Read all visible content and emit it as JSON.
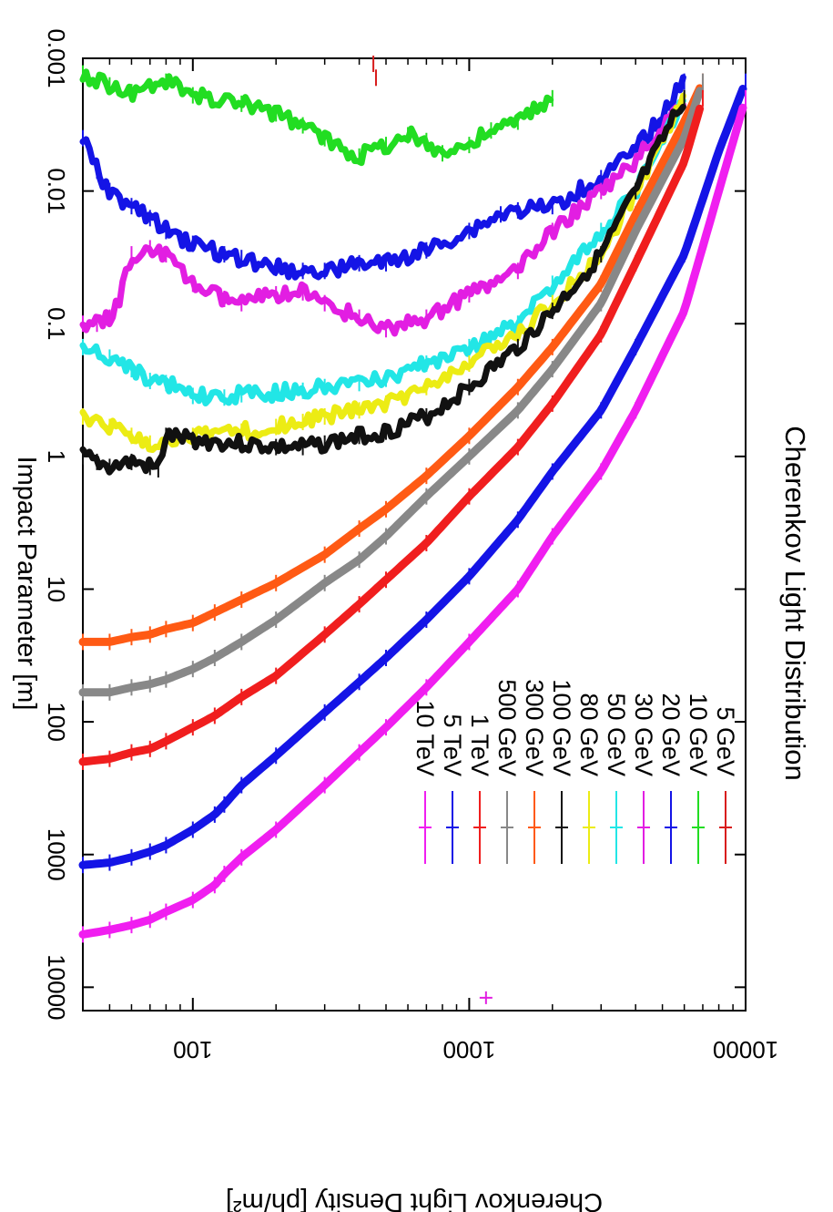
{
  "chart_data": {
    "type": "line",
    "title": "Cherenkov Light Distribution",
    "xlabel": "Impact Parameter [m]",
    "ylabel": "Cherenkov Light Density [ph/m²]",
    "xscale": "log",
    "yscale": "log",
    "xlim": [
      40,
      10000
    ],
    "ylim": [
      0.001,
      15000
    ],
    "xticks": [
      100,
      1000,
      10000
    ],
    "xtick_labels": [
      "100",
      "1000",
      "10000"
    ],
    "yticks": [
      0.001,
      0.01,
      0.1,
      1,
      10,
      100,
      1000,
      10000
    ],
    "ytick_labels": [
      "0.001",
      "0.01",
      "0.1",
      "1",
      "10",
      "100",
      "1000",
      "10000"
    ],
    "grid": false,
    "legend_position": "top-right",
    "series": [
      {
        "name": "5 GeV",
        "color": "#d81b1b",
        "x": [
          450,
          460
        ],
        "y": [
          0.0011,
          0.0014
        ]
      },
      {
        "name": "10 GeV",
        "color": "#22dd22",
        "x": [
          40,
          50,
          60,
          80,
          100,
          150,
          200,
          250,
          300,
          400,
          500,
          600,
          700,
          800,
          1000,
          1200,
          1500,
          2000
        ],
        "y": [
          0.0013,
          0.0016,
          0.0018,
          0.0015,
          0.0019,
          0.0022,
          0.0026,
          0.0032,
          0.004,
          0.0055,
          0.0045,
          0.0038,
          0.0042,
          0.0052,
          0.0045,
          0.0035,
          0.003,
          0.002
        ]
      },
      {
        "name": "20 GeV",
        "color": "#1414e6",
        "x": [
          40,
          45,
          50,
          60,
          70,
          80,
          100,
          130,
          150,
          200,
          250,
          300,
          400,
          500,
          700,
          1000,
          1300,
          1500,
          2000,
          3000,
          4000,
          6000
        ],
        "y": [
          0.004,
          0.007,
          0.01,
          0.013,
          0.016,
          0.02,
          0.025,
          0.03,
          0.032,
          0.038,
          0.04,
          0.04,
          0.035,
          0.035,
          0.028,
          0.02,
          0.015,
          0.014,
          0.013,
          0.008,
          0.005,
          0.0015
        ]
      },
      {
        "name": "30 GeV",
        "color": "#e21ee2",
        "x": [
          40,
          45,
          50,
          55,
          60,
          70,
          80,
          100,
          130,
          150,
          200,
          250,
          300,
          400,
          500,
          700,
          1000,
          1500,
          2000,
          3000,
          4000,
          6000
        ],
        "y": [
          0.1,
          0.1,
          0.09,
          0.06,
          0.03,
          0.027,
          0.03,
          0.05,
          0.065,
          0.07,
          0.06,
          0.058,
          0.07,
          0.09,
          0.11,
          0.09,
          0.06,
          0.04,
          0.02,
          0.01,
          0.006,
          0.002
        ]
      },
      {
        "name": "50 GeV",
        "color": "#22e6e6",
        "x": [
          40,
          50,
          60,
          70,
          80,
          100,
          130,
          150,
          200,
          250,
          300,
          400,
          500,
          700,
          1000,
          1500,
          2000,
          3000,
          4000,
          6000
        ],
        "y": [
          0.15,
          0.18,
          0.22,
          0.27,
          0.28,
          0.35,
          0.36,
          0.34,
          0.33,
          0.32,
          0.3,
          0.28,
          0.26,
          0.2,
          0.15,
          0.1,
          0.05,
          0.02,
          0.01,
          0.002
        ]
      },
      {
        "name": "80 GeV",
        "color": "#ecec14",
        "x": [
          40,
          50,
          60,
          70,
          80,
          100,
          150,
          200,
          250,
          300,
          400,
          500,
          700,
          1000,
          1500,
          2000,
          3000,
          4000,
          6000
        ],
        "y": [
          0.5,
          0.6,
          0.7,
          0.8,
          0.75,
          0.7,
          0.65,
          0.6,
          0.55,
          0.5,
          0.45,
          0.4,
          0.3,
          0.2,
          0.12,
          0.07,
          0.03,
          0.01,
          0.002
        ]
      },
      {
        "name": "100 GeV",
        "color": "#111111",
        "x": [
          40,
          45,
          50,
          60,
          70,
          75,
          80,
          100,
          150,
          200,
          250,
          300,
          400,
          500,
          700,
          1000,
          1500,
          2000,
          3000,
          4000,
          6000
        ],
        "y": [
          1.0,
          1.1,
          1.2,
          1.1,
          1.2,
          1.25,
          0.7,
          0.75,
          0.8,
          0.85,
          0.85,
          0.8,
          0.7,
          0.65,
          0.5,
          0.3,
          0.15,
          0.08,
          0.03,
          0.01,
          0.002
        ]
      },
      {
        "name": "300 GeV",
        "color": "#ff5a14",
        "x": [
          40,
          50,
          60,
          70,
          80,
          100,
          120,
          150,
          200,
          300,
          400,
          500,
          700,
          1000,
          1500,
          2000,
          3000,
          4000,
          6000,
          7000
        ],
        "y": [
          25,
          25,
          23,
          22,
          20,
          18,
          15,
          12,
          9,
          5.5,
          3.5,
          2.5,
          1.4,
          0.7,
          0.3,
          0.15,
          0.05,
          0.015,
          0.003,
          0.0015
        ]
      },
      {
        "name": "500 GeV",
        "color": "#888888",
        "x": [
          40,
          50,
          60,
          70,
          80,
          100,
          120,
          150,
          200,
          300,
          400,
          500,
          700,
          1000,
          1500,
          2000,
          3000,
          4000,
          6000,
          7000
        ],
        "y": [
          60,
          60,
          55,
          52,
          48,
          40,
          33,
          25,
          17,
          9,
          6,
          4,
          2,
          1,
          0.45,
          0.22,
          0.07,
          0.02,
          0.004,
          0.0015
        ]
      },
      {
        "name": "1 TeV",
        "color": "#f01e1e",
        "x": [
          40,
          50,
          60,
          70,
          80,
          100,
          120,
          150,
          200,
          300,
          400,
          500,
          700,
          1000,
          1500,
          2000,
          3000,
          4000,
          6000,
          7000
        ],
        "y": [
          200,
          190,
          170,
          160,
          140,
          110,
          90,
          65,
          45,
          22,
          13,
          8.5,
          4.5,
          2,
          0.85,
          0.4,
          0.12,
          0.035,
          0.006,
          0.002
        ]
      },
      {
        "name": "5 TeV",
        "color": "#1414e6",
        "x": [
          40,
          50,
          60,
          70,
          80,
          100,
          120,
          130,
          150,
          200,
          300,
          400,
          500,
          700,
          1000,
          1500,
          2000,
          3000,
          4000,
          6000,
          8000,
          10000
        ],
        "y": [
          1200,
          1150,
          1050,
          950,
          850,
          650,
          500,
          420,
          300,
          180,
          85,
          50,
          33,
          17,
          8,
          3,
          1.3,
          0.45,
          0.15,
          0.03,
          0.005,
          0.0015
        ]
      },
      {
        "name": "10 TeV",
        "color": "#f01ef0",
        "x": [
          40,
          50,
          60,
          70,
          80,
          100,
          120,
          130,
          150,
          200,
          300,
          400,
          500,
          700,
          1000,
          1500,
          2000,
          3000,
          4000,
          6000,
          8000,
          10000
        ],
        "y": [
          4000,
          3700,
          3400,
          3100,
          2700,
          2200,
          1700,
          1400,
          1050,
          650,
          300,
          170,
          110,
          55,
          25,
          10,
          4,
          1.3,
          0.45,
          0.08,
          0.01,
          0.002
        ]
      }
    ],
    "annotations": [
      {
        "type": "marker",
        "series": "30 GeV",
        "x": 1150,
        "y": 12000
      }
    ]
  }
}
